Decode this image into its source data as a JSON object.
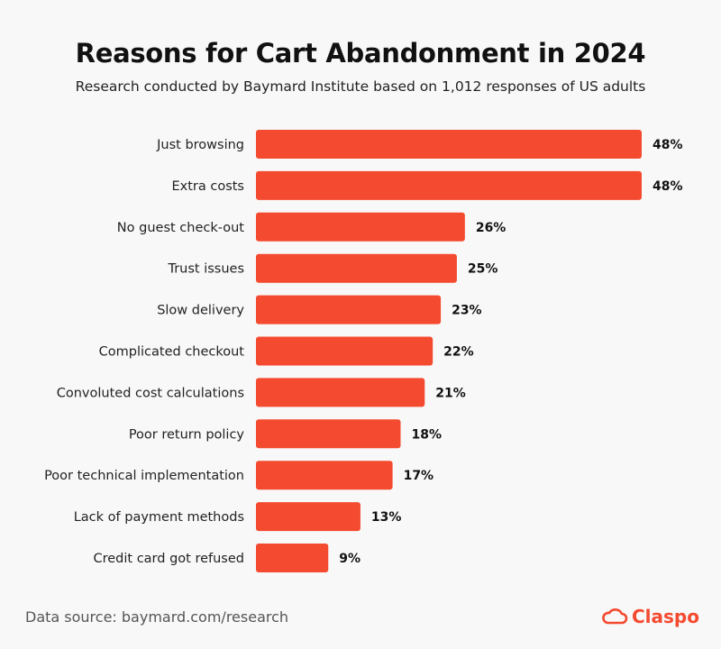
{
  "chart_data": {
    "type": "bar",
    "orientation": "horizontal",
    "title": "Reasons for Cart Abandonment in 2024",
    "subtitle": "Research conducted by Baymard Institute based on 1,012 responses of US adults",
    "categories": [
      "Just browsing",
      "Extra costs",
      "No guest check-out",
      "Trust issues",
      "Slow delivery",
      "Complicated checkout",
      "Convoluted cost calculations",
      "Poor return policy",
      "Poor technical implementation",
      "Lack of payment methods",
      "Credit card got refused"
    ],
    "values": [
      48,
      48,
      26,
      25,
      23,
      22,
      21,
      18,
      17,
      13,
      9
    ],
    "value_labels": [
      "48%",
      "48%",
      "26%",
      "25%",
      "23%",
      "22%",
      "21%",
      "18%",
      "17%",
      "13%",
      "9%"
    ],
    "xlim": [
      0,
      48
    ],
    "grid": false,
    "bar_color": "#f44a2f"
  },
  "footer": {
    "source": "Data source: baymard.com/research",
    "logo_text": "Claspo"
  }
}
